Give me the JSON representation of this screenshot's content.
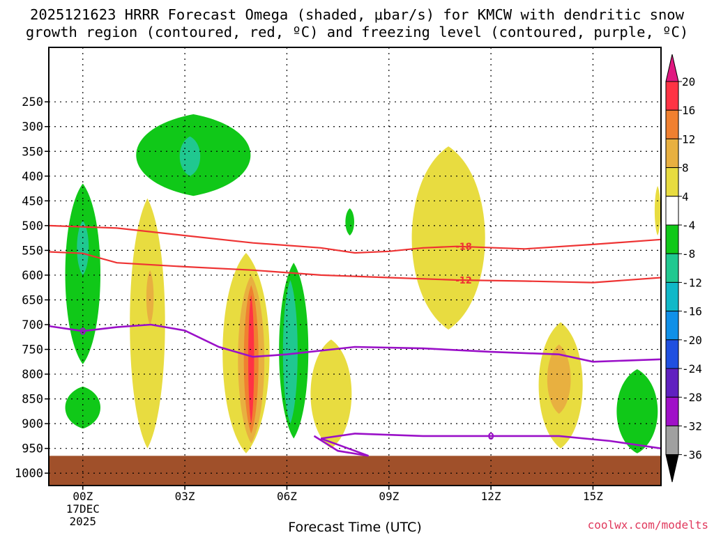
{
  "chart_data": {
    "type": "heatmap",
    "title_line1": "2025121623 HRRR Forecast Omega (shaded, μbar/s) for KMCW with dendritic snow",
    "title_line2": "growth region (contoured, red, ºC) and freezing level (contoured, purple, ºC)",
    "xlabel": "Forecast Time (UTC)",
    "ylabel": "",
    "credit": "coolwx.com/modelts",
    "x_range_hours": [
      -1,
      17
    ],
    "y_range_hpa": [
      1025,
      140
    ],
    "x_ticks": [
      {
        "hour": 0,
        "label": "00Z",
        "label2": "17DEC",
        "label3": "2025"
      },
      {
        "hour": 3,
        "label": "03Z"
      },
      {
        "hour": 6,
        "label": "06Z"
      },
      {
        "hour": 9,
        "label": "09Z"
      },
      {
        "hour": 12,
        "label": "12Z"
      },
      {
        "hour": 15,
        "label": "15Z"
      }
    ],
    "y_ticks": [
      250,
      300,
      350,
      400,
      450,
      500,
      550,
      600,
      650,
      700,
      750,
      800,
      850,
      900,
      950,
      1000
    ],
    "colorbar": {
      "labels": [
        "20",
        "16",
        "12",
        "8",
        "4",
        "-4",
        "-8",
        "-12",
        "-16",
        "-20",
        "-24",
        "-28",
        "-32",
        "-36"
      ],
      "colors": [
        "#ff3344",
        "#f08030",
        "#e8b040",
        "#e8dc40",
        "#ffffff",
        "#10c818",
        "#20c890",
        "#10b8c8",
        "#1090e8",
        "#2050e0",
        "#6020c0",
        "#a010c8",
        "#a0a0a0"
      ],
      "top_arrow_color": "#e01880",
      "bottom_arrow_color": "#000000"
    },
    "omega_regions": [
      {
        "name": "descent-green-upper",
        "level": -8,
        "hours": [
          1.3,
          5.2
        ],
        "hpa": [
          275,
          440
        ]
      },
      {
        "name": "descent-teal-upper",
        "level": -12,
        "hours": [
          2.8,
          3.5
        ],
        "hpa": [
          320,
          400
        ]
      },
      {
        "name": "descent-green-low-left",
        "level": -8,
        "hours": [
          -0.6,
          0.6
        ],
        "hpa": [
          415,
          780
        ]
      },
      {
        "name": "descent-teal-low-left",
        "level": -12,
        "hours": [
          -0.2,
          0.2
        ],
        "hpa": [
          490,
          600
        ]
      },
      {
        "name": "descent-small-low-left",
        "level": -8,
        "hours": [
          -0.6,
          0.6
        ],
        "hpa": [
          825,
          910
        ]
      },
      {
        "name": "ascent-yellow-02z",
        "level": 4,
        "hours": [
          1.3,
          2.5
        ],
        "hpa": [
          445,
          950
        ]
      },
      {
        "name": "ascent-orange-02z",
        "level": 8,
        "hours": [
          1.85,
          2.1
        ],
        "hpa": [
          590,
          700
        ]
      },
      {
        "name": "ascent-yellow-05z",
        "level": 4,
        "hours": [
          4.0,
          5.6
        ],
        "hpa": [
          555,
          960
        ]
      },
      {
        "name": "ascent-orange-05z",
        "level": 8,
        "hours": [
          4.5,
          5.4
        ],
        "hpa": [
          600,
          940
        ]
      },
      {
        "name": "ascent-dark-orange-05z",
        "level": 12,
        "hours": [
          4.7,
          5.2
        ],
        "hpa": [
          620,
          920
        ]
      },
      {
        "name": "ascent-red-05z",
        "level": 16,
        "hours": [
          4.85,
          5.05
        ],
        "hpa": [
          640,
          900
        ]
      },
      {
        "name": "descent-green-06z",
        "level": -8,
        "hours": [
          5.7,
          6.7
        ],
        "hpa": [
          575,
          930
        ]
      },
      {
        "name": "descent-teal-06z",
        "level": -12,
        "hours": [
          5.85,
          6.35
        ],
        "hpa": [
          610,
          900
        ]
      },
      {
        "name": "ascent-yellow-07z",
        "level": 4,
        "hours": [
          6.6,
          8.0
        ],
        "hpa": [
          730,
          950
        ]
      },
      {
        "name": "descent-green-08z",
        "level": -8,
        "hours": [
          7.7,
          8.0
        ],
        "hpa": [
          465,
          520
        ]
      },
      {
        "name": "ascent-yellow-11z-tall",
        "level": 4,
        "hours": [
          9.5,
          12.0
        ],
        "hpa": [
          340,
          710
        ]
      },
      {
        "name": "ascent-yellow-14z",
        "level": 4,
        "hours": [
          13.3,
          14.8
        ],
        "hpa": [
          695,
          950
        ]
      },
      {
        "name": "ascent-orange-14z",
        "level": 8,
        "hours": [
          13.6,
          14.4
        ],
        "hpa": [
          740,
          880
        ]
      },
      {
        "name": "descent-green-16z",
        "level": -8,
        "hours": [
          15.6,
          17.0
        ],
        "hpa": [
          790,
          960
        ]
      },
      {
        "name": "ascent-yellow-17z-edge",
        "level": 4,
        "hours": [
          16.8,
          17.0
        ],
        "hpa": [
          420,
          520
        ]
      }
    ],
    "red_contours": [
      {
        "label": "-18",
        "hours": [
          -1,
          1,
          3,
          5,
          7,
          8,
          9,
          10,
          11,
          13,
          15,
          17
        ],
        "hpa": [
          500,
          505,
          520,
          535,
          545,
          555,
          552,
          545,
          542,
          547,
          538,
          528
        ]
      },
      {
        "label": "-12",
        "hours": [
          -1,
          0,
          1,
          3,
          5,
          7,
          9,
          11,
          13,
          15,
          17
        ],
        "hpa": [
          553,
          556,
          575,
          583,
          590,
          600,
          605,
          610,
          612,
          615,
          605
        ]
      }
    ],
    "purple_contours": [
      {
        "label": "0",
        "hours": [
          -1,
          0,
          1,
          2,
          3,
          4,
          5,
          6,
          8,
          10,
          12,
          14,
          15,
          17
        ],
        "hpa": [
          703,
          713,
          705,
          700,
          712,
          745,
          765,
          760,
          745,
          748,
          755,
          760,
          775,
          770
        ]
      },
      {
        "label": "0",
        "hours": [
          6.8,
          7.5,
          8.4,
          8.0,
          7.0,
          8.0,
          10,
          12,
          14,
          15.5,
          17
        ],
        "hpa": [
          925,
          955,
          965,
          955,
          930,
          920,
          925,
          925,
          925,
          935,
          950
        ]
      }
    ],
    "red_label_positions": [
      {
        "label": "-18",
        "hour": 11.2,
        "hpa": 542
      },
      {
        "label": "-12",
        "hour": 11.2,
        "hpa": 610
      }
    ],
    "purple_label_positions": [
      {
        "label": "0",
        "hour": 0.0,
        "hpa": 713
      },
      {
        "label": "0",
        "hour": 12.0,
        "hpa": 925
      }
    ],
    "surface_hpa": [
      1025,
      965
    ],
    "surface_color": "#a0502a"
  }
}
